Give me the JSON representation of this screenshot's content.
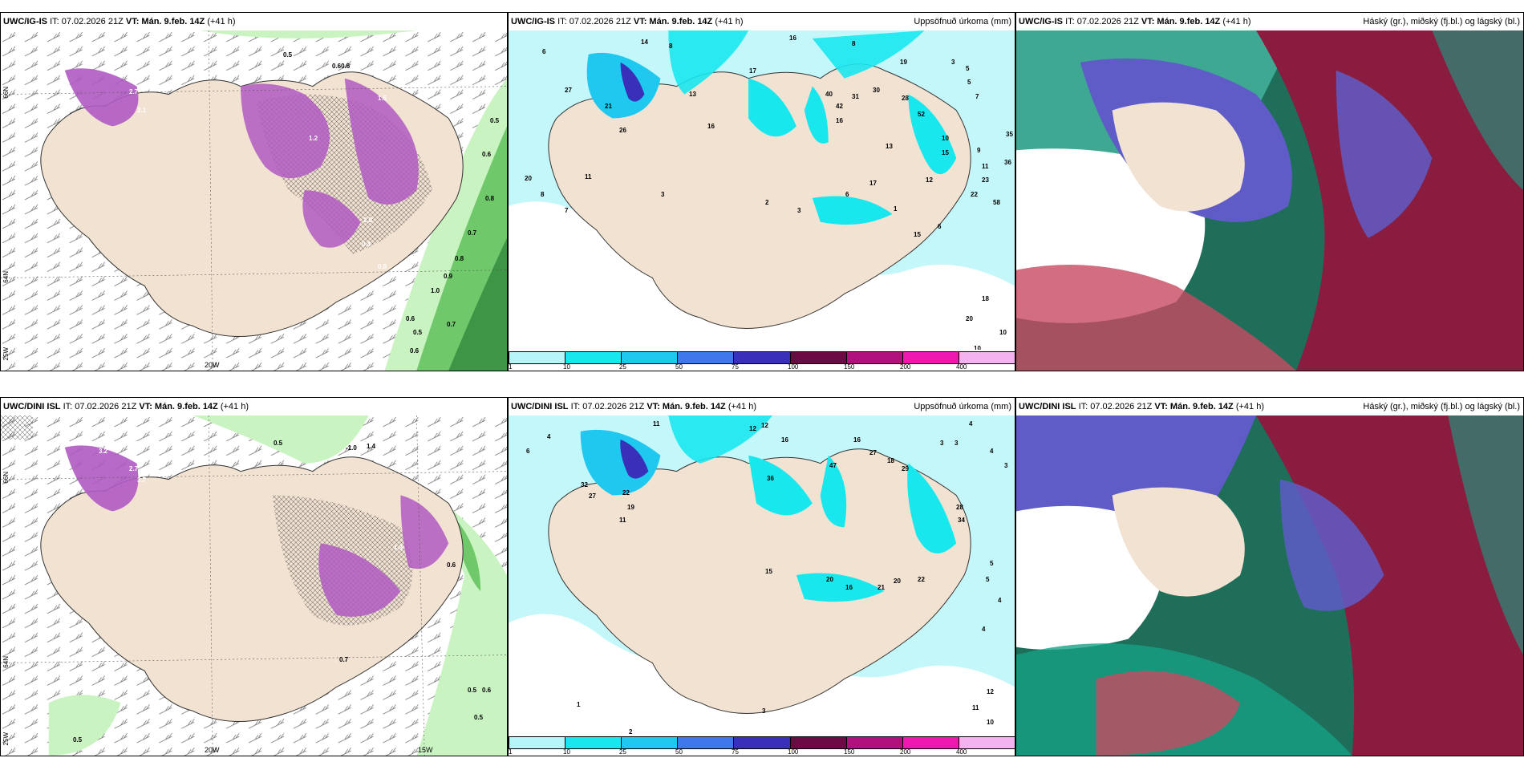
{
  "rows": [
    {
      "model": "UWC/IG-IS",
      "panels": [
        {
          "id": "cloud-precip-type",
          "header": {
            "model": "UWC/IG-IS",
            "it_label": "IT: 07.02.2026 21Z",
            "vt_label": "VT: Mán. 9.feb. 14Z",
            "lead": "(+41 h)",
            "title": ""
          },
          "lat_labels": [
            "66N",
            "64N",
            "25W"
          ],
          "lon_labels": [
            "20W"
          ],
          "values": [
            "0.5",
            "0.60.6",
            "0.5",
            "0.6",
            "0.8",
            "0.7",
            "0.8",
            "0.9",
            "1.0",
            "0.6",
            "0.5",
            "0.6",
            "0.7",
            "2.1",
            "2.7",
            "2.0",
            "1.5",
            "0.4",
            "0.8",
            "1.2"
          ]
        },
        {
          "id": "accum-precip",
          "header": {
            "model": "UWC/IG-IS",
            "it_label": "IT: 07.02.2026 21Z",
            "vt_label": "VT: Mán. 9.feb. 14Z",
            "lead": "(+41 h)",
            "title": "Uppsöfnuð úrkoma (mm)"
          },
          "values": [
            "14",
            "8",
            "6",
            "16",
            "8",
            "19",
            "3",
            "5",
            "5",
            "7",
            "17",
            "13",
            "30",
            "28",
            "52",
            "27",
            "21",
            "26",
            "40",
            "31",
            "42",
            "16",
            "10",
            "15",
            "9",
            "11",
            "23",
            "22",
            "58",
            "35",
            "36",
            "20",
            "11",
            "8",
            "7",
            "3",
            "2",
            "3",
            "6",
            "1",
            "15",
            "6",
            "18",
            "20",
            "10",
            "10",
            "16",
            "17",
            "13",
            "12"
          ]
        },
        {
          "id": "cloud-layers",
          "header": {
            "model": "UWC/IG-IS",
            "it_label": "IT: 07.02.2026 21Z",
            "vt_label": "VT: Mán. 9.feb. 14Z",
            "lead": "(+41 h)",
            "title": "Háský (gr.), miðský (fj.bl.) og lágský (bl.)"
          }
        }
      ]
    },
    {
      "model": "UWC/DINI ISL",
      "panels": [
        {
          "id": "cloud-precip-type",
          "header": {
            "model": "UWC/DINI ISL",
            "it_label": "IT: 07.02.2026 21Z",
            "vt_label": "VT: Mán. 9.feb. 14Z",
            "lead": "(+41 h)",
            "title": ""
          },
          "lat_labels": [
            "66N",
            "64N",
            "25W"
          ],
          "lon_labels": [
            "20W",
            "15W"
          ],
          "values": [
            "0.5",
            "-1.0",
            "1.4",
            "3.2",
            "2.7",
            "3.7",
            "0.5",
            "0.6",
            "0.6",
            "0.5",
            "0.5",
            "0.7",
            "1.3"
          ]
        },
        {
          "id": "accum-precip",
          "header": {
            "model": "UWC/DINI ISL",
            "it_label": "IT: 07.02.2026 21Z",
            "vt_label": "VT: Mán. 9.feb. 14Z",
            "lead": "(+41 h)",
            "title": "Uppsöfnuð úrkoma (mm)"
          },
          "values": [
            "11",
            "4",
            "6",
            "12",
            "12",
            "16",
            "16",
            "27",
            "18",
            "29",
            "36",
            "47",
            "4",
            "3",
            "3",
            "4",
            "3",
            "5",
            "5",
            "4",
            "4",
            "12",
            "11",
            "10",
            "3",
            "1",
            "2",
            "15",
            "20",
            "16",
            "21",
            "20",
            "22",
            "28",
            "34",
            "32",
            "27",
            "22",
            "19",
            "11"
          ]
        },
        {
          "id": "cloud-layers",
          "header": {
            "model": "UWC/DINI ISL",
            "it_label": "IT: 07.02.2026 21Z",
            "vt_label": "VT: Mán. 9.feb. 14Z",
            "lead": "(+41 h)",
            "title": "Háský (gr.), miðský (fj.bl.) og lágský (bl.)"
          }
        }
      ]
    }
  ],
  "legend": {
    "ticks": [
      "1",
      "10",
      "25",
      "50",
      "75",
      "100",
      "150",
      "200",
      "400"
    ],
    "colors": [
      "#b6f5f8",
      "#19e7ee",
      "#1fc8ee",
      "#3f78ea",
      "#3a2fb8",
      "#6b0a45",
      "#b0117f",
      "#ee18b0",
      "#f5b2f0"
    ]
  },
  "colors": {
    "land": "#f2e2d2",
    "sea_light": "#c4f7fa",
    "green_light": "#c9f3c1",
    "green_mid": "#6fc96b",
    "green_dark": "#2f8a3c",
    "purple": "#b05ac2",
    "high_cloud": "#16a084",
    "mid_cloud": "#5f5cc7",
    "low_cloud": "#9a2146"
  }
}
